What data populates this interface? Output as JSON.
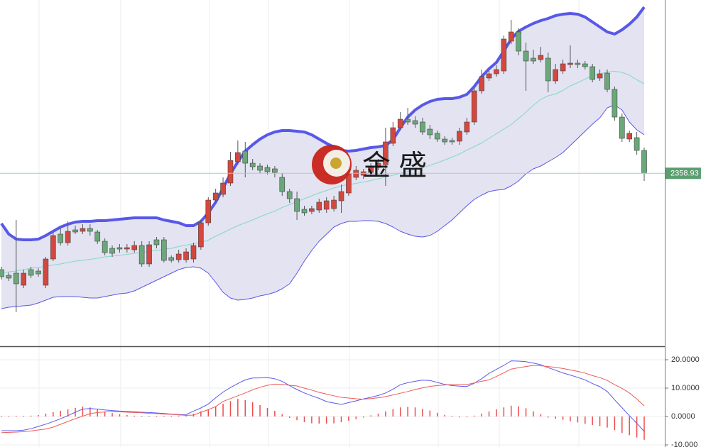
{
  "chart_data": [
    {
      "type": "candlestick",
      "watermark": "金 盛",
      "ylim": [
        2298,
        2420
      ],
      "up_color": "#d4473f",
      "down_color": "#6aa87a",
      "open": [
        2325,
        2323,
        2323.75,
        2319.5,
        2325,
        2324.5,
        2319.5,
        2328.75,
        2337.5,
        2334.5,
        2339,
        2338.5,
        2339.5,
        2338.25,
        2335,
        2332.5,
        2332.75,
        2332.25,
        2332,
        2333.5,
        2327,
        2335.5,
        2335.5,
        2329.25,
        2328.5,
        2328.5,
        2328.75,
        2333,
        2341.5,
        2349.5,
        2351.5,
        2355.5,
        2363,
        2366.75,
        2362.5,
        2361.5,
        2361,
        2360.5,
        2357.5,
        2352.5,
        2350,
        2346.25,
        2345.5,
        2346,
        2346.25,
        2346.5,
        2349.25,
        2352,
        2357.5,
        2358.25,
        2359.25,
        2361,
        2362,
        2369.5,
        2375,
        2378,
        2377.5,
        2377,
        2374.5,
        2373,
        2371,
        2370.5,
        2370.25,
        2373.5,
        2377,
        2388,
        2392.5,
        2394,
        2395,
        2405.5,
        2408.75,
        2402,
        2399.5,
        2399,
        2399.5,
        2391.5,
        2395,
        2397.25,
        2397.75,
        2397.5,
        2396.5,
        2392.5,
        2394.25,
        2388.5,
        2378.75,
        2371,
        2371.5,
        2367
      ],
      "high": [
        2326,
        2324,
        2342.5,
        2325,
        2326,
        2325.5,
        2329.5,
        2338,
        2339.5,
        2342,
        2340.5,
        2341,
        2341,
        2339,
        2336,
        2333.5,
        2334,
        2334,
        2335,
        2335,
        2335,
        2336.5,
        2336.5,
        2330,
        2332,
        2332.5,
        2334.5,
        2342.5,
        2350.5,
        2353.5,
        2357.5,
        2366.5,
        2370.5,
        2370,
        2364,
        2362.5,
        2362,
        2361.5,
        2359,
        2353.5,
        2352.5,
        2347.5,
        2347.5,
        2350,
        2350.5,
        2351,
        2355,
        2361,
        2361.5,
        2360.5,
        2362.5,
        2364,
        2375,
        2377,
        2380.5,
        2382,
        2379,
        2378.5,
        2376,
        2374,
        2372,
        2371.5,
        2375,
        2378.5,
        2389,
        2395.5,
        2395,
        2397,
        2407.5,
        2413,
        2410,
        2405,
        2402.5,
        2403.5,
        2401.5,
        2397.5,
        2399,
        2404,
        2399,
        2398.5,
        2397.5,
        2395.5,
        2395.5,
        2389.5,
        2380,
        2374,
        2373.5,
        2368
      ],
      "low": [
        2321.5,
        2321,
        2310,
        2318.5,
        2322,
        2322.5,
        2318.5,
        2328,
        2333.5,
        2333.5,
        2337.5,
        2337.5,
        2337,
        2334,
        2330,
        2329.5,
        2331,
        2331,
        2331,
        2326,
        2326,
        2332.5,
        2327.5,
        2327.5,
        2327.5,
        2327.5,
        2327.5,
        2332,
        2340.5,
        2348.5,
        2350.5,
        2354.5,
        2362,
        2357.5,
        2360,
        2359,
        2358.5,
        2357.5,
        2351,
        2348.5,
        2342.5,
        2344,
        2344.5,
        2345,
        2345,
        2345.5,
        2345,
        2351,
        2356.5,
        2357,
        2358,
        2360,
        2354.5,
        2368.5,
        2374,
        2376,
        2375,
        2372.5,
        2371,
        2370,
        2369,
        2369,
        2369,
        2372.5,
        2376,
        2387,
        2391.5,
        2393,
        2394,
        2404.5,
        2400.5,
        2388,
        2397.5,
        2398,
        2387.5,
        2390.5,
        2394,
        2396,
        2396,
        2395.5,
        2391,
        2391.5,
        2387.5,
        2377.5,
        2370,
        2370,
        2365.5,
        2356.25
      ],
      "close": [
        2322.5,
        2322,
        2320,
        2323.75,
        2323,
        2323.5,
        2328.75,
        2337,
        2334.5,
        2338.5,
        2338.25,
        2339.5,
        2338.5,
        2335,
        2331,
        2330.75,
        2332.25,
        2332.75,
        2333.5,
        2327,
        2333.75,
        2333.75,
        2328.25,
        2328.25,
        2330.5,
        2331.25,
        2333.5,
        2341.5,
        2349.5,
        2352,
        2355.5,
        2363.5,
        2366.25,
        2362.5,
        2361.25,
        2360,
        2359.5,
        2359.25,
        2352.5,
        2350,
        2345.5,
        2345,
        2346.5,
        2348.75,
        2349.25,
        2349.5,
        2352.5,
        2358.75,
        2360,
        2359.5,
        2361.25,
        2362.5,
        2370,
        2375,
        2378,
        2377,
        2376.25,
        2373.5,
        2372.5,
        2371,
        2370,
        2370,
        2373.75,
        2377,
        2388,
        2393,
        2394,
        2395.5,
        2406.25,
        2408.75,
        2402,
        2398.5,
        2398.5,
        2400.5,
        2391.5,
        2395.5,
        2397.5,
        2397.75,
        2397.25,
        2396.5,
        2392,
        2394,
        2388.5,
        2378.75,
        2371.25,
        2373,
        2367,
        2358.93
      ],
      "bands": {
        "fill": "#e3e3f1",
        "upper": {
          "color": "#5858e8",
          "values": [
            2341.25,
            2337.5,
            2335.75,
            2335.5,
            2335.5,
            2335.75,
            2337,
            2338.5,
            2340,
            2341,
            2341.75,
            2342,
            2342,
            2342.25,
            2342.25,
            2342.5,
            2342.75,
            2343,
            2343.25,
            2343.25,
            2343.25,
            2343.25,
            2342.5,
            2342,
            2341.5,
            2340.5,
            2340.5,
            2342,
            2345,
            2348.75,
            2353.75,
            2358.75,
            2363,
            2366.75,
            2369,
            2371,
            2372.5,
            2373.5,
            2374,
            2374,
            2373.75,
            2373.5,
            2372.5,
            2371,
            2369.5,
            2368.25,
            2367,
            2366.75,
            2367,
            2367.5,
            2368,
            2368.25,
            2368.75,
            2370.75,
            2375,
            2378.75,
            2381.25,
            2383,
            2384.25,
            2385,
            2385.25,
            2385.25,
            2385.75,
            2386.75,
            2389.5,
            2393,
            2395.75,
            2398,
            2402,
            2406.25,
            2409,
            2410.5,
            2411.75,
            2412.75,
            2413.5,
            2414.5,
            2415,
            2415.25,
            2415,
            2414,
            2412.25,
            2410.5,
            2408.75,
            2408,
            2409.5,
            2411.5,
            2414,
            2417.5
          ]
        },
        "middle": {
          "color": "#86d8c8",
          "values": [
            2323.75,
            2324.25,
            2324.5,
            2325,
            2325.5,
            2325.75,
            2326.25,
            2326.625,
            2327,
            2327.5,
            2328,
            2328.25,
            2328.625,
            2329,
            2329.5,
            2329.75,
            2330,
            2330.375,
            2330.75,
            2331,
            2331.5,
            2331.75,
            2332.25,
            2332.5,
            2333.125,
            2333.625,
            2334.125,
            2334.625,
            2335.375,
            2336.75,
            2338,
            2339.25,
            2340.5,
            2341.5,
            2342.5,
            2343.625,
            2344.625,
            2345.625,
            2346.875,
            2347.875,
            2349,
            2350,
            2351,
            2352,
            2352.875,
            2353.75,
            2354.5,
            2355,
            2355.375,
            2355.875,
            2356.375,
            2357,
            2357.625,
            2358.25,
            2359,
            2359.625,
            2360.25,
            2360.875,
            2361.75,
            2362.625,
            2363.625,
            2364.625,
            2365.75,
            2367.125,
            2368.375,
            2369.625,
            2371.25,
            2372.875,
            2374.5,
            2376.125,
            2378.25,
            2380.5,
            2382.875,
            2385,
            2386.25,
            2386.875,
            2388.125,
            2389.75,
            2390.875,
            2392.125,
            2393.25,
            2394,
            2394.625,
            2394.875,
            2394.5,
            2393.5,
            2391.875,
            2390.5
          ]
        },
        "lower": {
          "color": "#5858e8",
          "values": [
            2311.25,
            2311.75,
            2312,
            2312.25,
            2312.5,
            2313.25,
            2314.25,
            2315.25,
            2315.5,
            2315.5,
            2315.5,
            2315.25,
            2315,
            2315,
            2315.5,
            2316,
            2316.5,
            2316.75,
            2317.5,
            2318.75,
            2320,
            2321.25,
            2322.5,
            2323.75,
            2325,
            2325.75,
            2326,
            2325.5,
            2323.75,
            2320.5,
            2317,
            2315,
            2314.25,
            2314.5,
            2315,
            2315.75,
            2316.25,
            2317,
            2318.25,
            2320,
            2323.75,
            2328,
            2331.75,
            2335,
            2337.5,
            2340,
            2341.25,
            2342,
            2342,
            2342.25,
            2342.25,
            2342,
            2341.25,
            2340,
            2338.5,
            2337.5,
            2336.75,
            2336.5,
            2337,
            2338.5,
            2340.5,
            2342.5,
            2345,
            2347.5,
            2349.75,
            2351.25,
            2352.5,
            2353,
            2353.25,
            2354.5,
            2356.25,
            2358.75,
            2360.5,
            2361.5,
            2363,
            2364.5,
            2366.25,
            2368.75,
            2371.25,
            2373.75,
            2376.25,
            2378.5,
            2382,
            2383,
            2381.25,
            2377,
            2374.25,
            2372.5
          ]
        }
      },
      "last_price_color": "#5b9e70"
    },
    {
      "type": "macd",
      "ylim": [
        -10.75,
        24.25
      ],
      "yticks": [
        {
          "value": 20,
          "label": "20.0000"
        },
        {
          "value": 10,
          "label": "10.0000"
        },
        {
          "value": 0,
          "label": "0.0000"
        },
        {
          "value": -10,
          "label": "-10.000"
        }
      ],
      "grid": true,
      "series": [
        {
          "color": "#5a5aee",
          "values": [
            -5,
            -5,
            -5,
            -4.8,
            -4.3,
            -3.5,
            -2.7,
            -1.8,
            -0.8,
            0.3,
            1.5,
            2.6,
            2.8,
            2.6,
            2.3,
            2.1,
            1.9,
            1.8,
            1.65,
            1.5,
            1.4,
            1.25,
            1.05,
            0.85,
            0.65,
            0.7,
            1.9,
            3,
            4.4,
            6.6,
            8.6,
            10.2,
            11.6,
            12.9,
            13.55,
            13.6,
            13.7,
            13.3,
            12.4,
            10.9,
            9.5,
            8.3,
            7.3,
            6.4,
            5.25,
            4.75,
            4.25,
            4.9,
            5.5,
            6.2,
            6.75,
            7.4,
            8.3,
            9.6,
            11.2,
            11.9,
            12.4,
            12.8,
            12.7,
            12,
            11.3,
            10.9,
            10.7,
            10.55,
            11.7,
            13.3,
            15.2,
            16.6,
            18,
            19.6,
            19.5,
            19.3,
            18.8,
            18.25,
            17.2,
            16.3,
            15.35,
            14.6,
            13.8,
            12.9,
            11.6,
            10.5,
            8.8,
            5.9,
            3.1,
            0.3,
            -2.4,
            -5.25
          ]
        },
        {
          "color": "#ee5a5a",
          "values": [
            -5.7,
            -5.6,
            -5.5,
            -5.35,
            -5.1,
            -4.75,
            -4.4,
            -3.75,
            -2.75,
            -1.75,
            -0.75,
            0.1,
            1,
            1.4,
            1.6,
            1.7,
            1.65,
            1.5,
            1.4,
            1.3,
            1.1,
            1,
            0.85,
            0.75,
            0.55,
            0.4,
            0.5,
            1.5,
            2.4,
            3.5,
            5.3,
            6.3,
            7.3,
            8.3,
            9.4,
            10.3,
            11,
            11.4,
            11.3,
            11,
            10.75,
            10,
            9.3,
            8.5,
            7.9,
            7.3,
            6.75,
            6.5,
            6.25,
            6.1,
            6.3,
            6.6,
            7,
            7.6,
            8.2,
            8.8,
            9.5,
            10.1,
            10.6,
            10.9,
            11.1,
            11.25,
            11.25,
            11.25,
            11.8,
            12.4,
            12.9,
            14.1,
            15.4,
            16.7,
            17.2,
            17.6,
            18,
            17.85,
            17.6,
            17.3,
            16.9,
            16.4,
            15.9,
            15.3,
            14.4,
            13.7,
            12.7,
            11.2,
            9.9,
            8.3,
            6.2,
            3.75
          ]
        }
      ],
      "histogram": {
        "color": "#ef4b4b",
        "values": [
          0.25,
          0.25,
          0.25,
          0.25,
          0.3,
          0.5,
          1,
          1.5,
          2,
          2.5,
          3,
          3.5,
          3.2,
          2.5,
          1.8,
          1.2,
          0.8,
          0.5,
          0.3,
          0.25,
          0.25,
          0.25,
          0.25,
          0.25,
          0.3,
          0.5,
          1,
          1.8,
          2.6,
          3.5,
          4.5,
          5.4,
          6.2,
          5.8,
          5,
          4,
          3,
          2,
          0.8,
          -0.5,
          -1.3,
          -2,
          -2.4,
          -2.5,
          -2.5,
          -2.4,
          -2,
          -1.5,
          -1,
          -0.4,
          0.4,
          1,
          1.8,
          2.6,
          3.2,
          3.4,
          3.2,
          2.7,
          2.1,
          1.3,
          0.6,
          0.25,
          -0.3,
          -0.25,
          0.3,
          1,
          1.8,
          2.5,
          3.2,
          3.8,
          3.6,
          2.9,
          1.8,
          0.8,
          -0.4,
          -0.8,
          -1.2,
          -1.7,
          -2.1,
          -2.6,
          -3,
          -3.4,
          -3.9,
          -4.8,
          -5.8,
          -6.6,
          -7.4,
          -8.2
        ]
      }
    }
  ]
}
